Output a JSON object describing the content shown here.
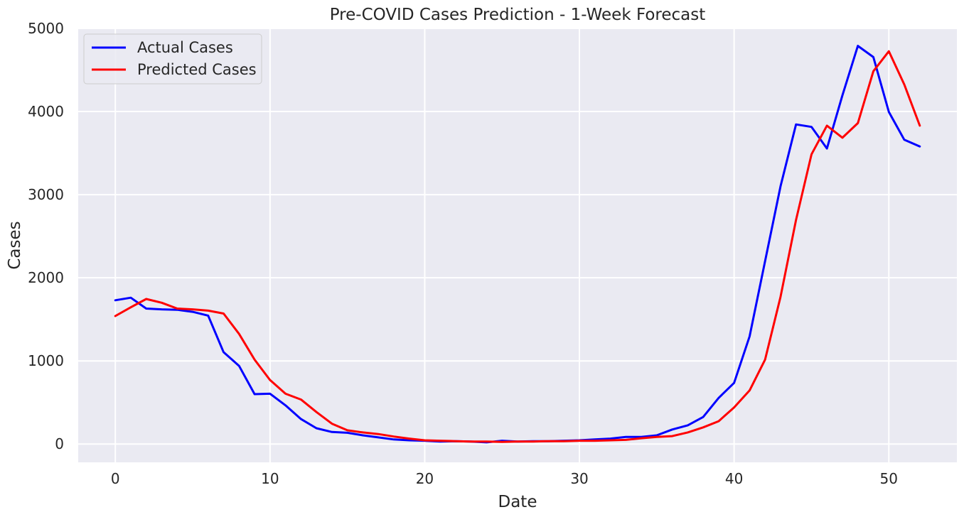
{
  "chart_data": {
    "type": "line",
    "title": "Pre-COVID Cases Prediction - 1-Week Forecast",
    "xlabel": "Date",
    "ylabel": "Cases",
    "xlim": [
      -2.4,
      54.4
    ],
    "ylim": [
      -220,
      5000
    ],
    "xticks": [
      0,
      10,
      20,
      30,
      40,
      50
    ],
    "yticks": [
      0,
      1000,
      2000,
      3000,
      4000,
      5000
    ],
    "grid": true,
    "legend_position": "top-left",
    "x": [
      0,
      1,
      2,
      3,
      4,
      5,
      6,
      7,
      8,
      9,
      10,
      11,
      12,
      13,
      14,
      15,
      16,
      17,
      18,
      19,
      20,
      21,
      22,
      23,
      24,
      25,
      26,
      27,
      28,
      29,
      30,
      31,
      32,
      33,
      34,
      35,
      36,
      37,
      38,
      39,
      40,
      41,
      42,
      43,
      44,
      45,
      46,
      47,
      48,
      49,
      50,
      51,
      52
    ],
    "series": [
      {
        "name": "Actual Cases",
        "color": "#0000ff",
        "values": [
          1730,
          1760,
          1630,
          1620,
          1615,
          1590,
          1545,
          1105,
          940,
          600,
          605,
          465,
          300,
          190,
          145,
          135,
          105,
          80,
          55,
          45,
          40,
          30,
          35,
          30,
          20,
          40,
          30,
          35,
          35,
          40,
          45,
          55,
          65,
          85,
          85,
          105,
          175,
          225,
          325,
          555,
          735,
          1295,
          2200,
          3100,
          3845,
          3815,
          3555,
          4195,
          4790,
          4655,
          3995,
          3660,
          3580
        ]
      },
      {
        "name": "Predicted Cases",
        "color": "#ff0000",
        "values": [
          1540,
          1645,
          1745,
          1700,
          1630,
          1620,
          1605,
          1570,
          1325,
          1015,
          770,
          605,
          535,
          385,
          245,
          165,
          140,
          120,
          90,
          65,
          45,
          40,
          35,
          30,
          30,
          25,
          30,
          30,
          35,
          35,
          40,
          40,
          45,
          50,
          70,
          85,
          95,
          140,
          200,
          275,
          440,
          645,
          1015,
          1770,
          2695,
          3485,
          3830,
          3685,
          3860,
          4485,
          4725,
          4325,
          3830
        ]
      }
    ]
  }
}
